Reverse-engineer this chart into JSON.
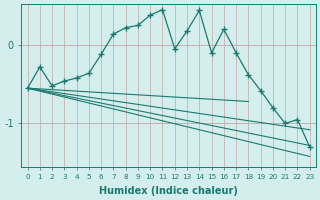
{
  "xlabel": "Humidex (Indice chaleur)",
  "background_color": "#d4eeee",
  "vgrid_color": "#c0a8a8",
  "hgrid_color": "#c0a8a8",
  "line_color": "#1a7a6e",
  "xlim": [
    -0.5,
    23.5
  ],
  "ylim": [
    -1.55,
    0.52
  ],
  "yticks": [
    0,
    -1
  ],
  "xticks": [
    0,
    1,
    2,
    3,
    4,
    5,
    6,
    7,
    8,
    9,
    10,
    11,
    12,
    13,
    14,
    15,
    16,
    17,
    18,
    19,
    20,
    21,
    22,
    23
  ],
  "main_x": [
    0,
    1,
    2,
    3,
    4,
    5,
    6,
    7,
    8,
    9,
    10,
    11,
    12,
    13,
    14,
    15,
    16,
    17,
    18,
    19,
    20,
    21,
    22,
    23
  ],
  "main_y": [
    -0.55,
    -0.28,
    -0.52,
    -0.46,
    -0.42,
    -0.36,
    -0.12,
    0.14,
    0.22,
    0.25,
    0.38,
    0.45,
    -0.05,
    0.18,
    0.44,
    -0.1,
    0.2,
    -0.1,
    -0.38,
    -0.58,
    -0.8,
    -1.0,
    -0.95,
    -1.3
  ],
  "trend_lines": [
    {
      "x0": 0,
      "y0": -0.55,
      "x1": 18,
      "y1": -0.72
    },
    {
      "x0": 0,
      "y0": -0.55,
      "x1": 23,
      "y1": -1.08
    },
    {
      "x0": 0,
      "y0": -0.55,
      "x1": 23,
      "y1": -1.28
    },
    {
      "x0": 0,
      "y0": -0.55,
      "x1": 23,
      "y1": -1.42
    }
  ]
}
